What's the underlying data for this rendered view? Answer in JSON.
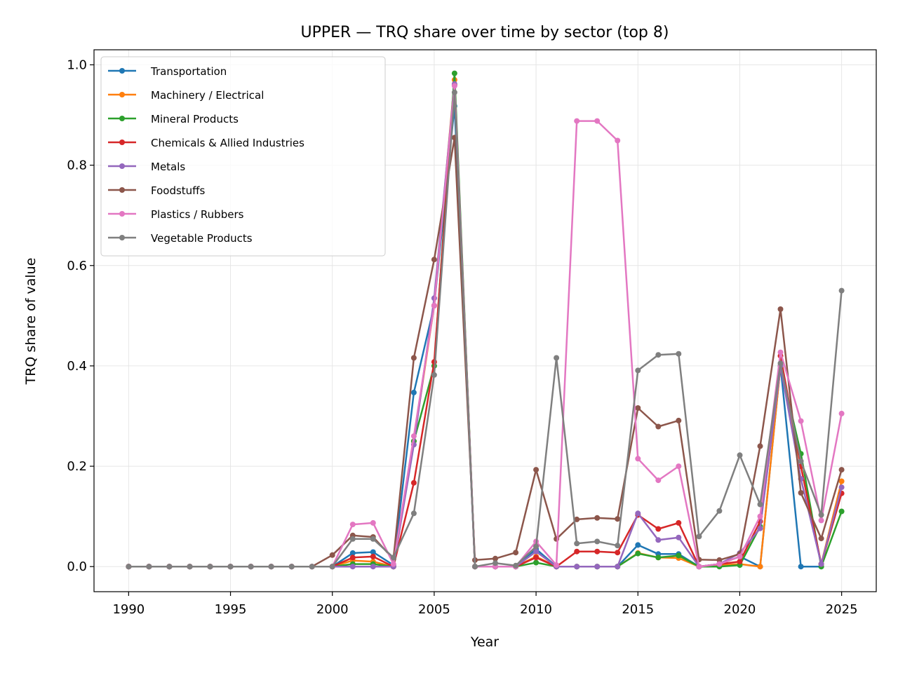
{
  "chart_data": {
    "type": "line",
    "title": "UPPER — TRQ share over time by sector (top 8)",
    "xlabel": "Year",
    "ylabel": "TRQ share of value",
    "xlim": [
      1988.3,
      2026.7
    ],
    "ylim": [
      -0.05,
      1.03
    ],
    "xticks": [
      1990,
      1995,
      2000,
      2005,
      2010,
      2015,
      2020,
      2025
    ],
    "yticks": [
      "0.0",
      "0.2",
      "0.4",
      "0.6",
      "0.8",
      "1.0"
    ],
    "grid": true,
    "legend_position": "top-left",
    "x": [
      1990,
      1991,
      1992,
      1993,
      1994,
      1995,
      1996,
      1997,
      1998,
      1999,
      2000,
      2001,
      2002,
      2003,
      2004,
      2005,
      2006,
      2007,
      2008,
      2009,
      2010,
      2011,
      2012,
      2013,
      2014,
      2015,
      2016,
      2017,
      2018,
      2019,
      2020,
      2021,
      2022,
      2023,
      2024,
      2025
    ],
    "series": [
      {
        "name": "Transportation",
        "color": "#1f77b4",
        "values": [
          0,
          0,
          0,
          0,
          0,
          0,
          0,
          0,
          0,
          0,
          0,
          0.027,
          0.029,
          0.003,
          0.347,
          0.52,
          0.918,
          0,
          0,
          0,
          0.035,
          0,
          0,
          0,
          0,
          0.043,
          0.025,
          0.025,
          0,
          0.005,
          0.02,
          0,
          0.4,
          0,
          0,
          null
        ]
      },
      {
        "name": "Machinery / Electrical",
        "color": "#ff7f0e",
        "values": [
          0,
          0,
          0,
          0,
          0,
          0,
          0,
          0,
          0,
          0,
          0,
          0.012,
          0.01,
          0,
          0.25,
          0.52,
          0.97,
          0,
          0,
          0,
          0.02,
          0,
          0,
          0,
          0,
          0.027,
          0.018,
          0.017,
          0,
          0.003,
          0.005,
          0,
          0.4,
          0.2,
          0.005,
          0.17
        ]
      },
      {
        "name": "Mineral Products",
        "color": "#2ca02c",
        "values": [
          0,
          0,
          0,
          0,
          0,
          0,
          0,
          0,
          0,
          0,
          0,
          0.005,
          0.005,
          0,
          0.25,
          0.4,
          0.983,
          0,
          0,
          0,
          0.008,
          0,
          0,
          0,
          0,
          0.026,
          0.018,
          0.022,
          0,
          0,
          0.003,
          0.08,
          0.4,
          0.225,
          0,
          0.11
        ]
      },
      {
        "name": "Chemicals & Allied Industries",
        "color": "#d62728",
        "values": [
          0,
          0,
          0,
          0,
          0,
          0,
          0,
          0,
          0,
          0,
          0,
          0.018,
          0.02,
          0,
          0.167,
          0.408,
          0.96,
          0,
          0,
          0,
          0.018,
          0,
          0.03,
          0.03,
          0.028,
          0.103,
          0.075,
          0.087,
          0,
          0.005,
          0.01,
          0.09,
          0.42,
          0.2,
          0.005,
          0.146
        ]
      },
      {
        "name": "Metals",
        "color": "#9467bd",
        "values": [
          0,
          0,
          0,
          0,
          0,
          0,
          0,
          0,
          0,
          0,
          0,
          0,
          0,
          0,
          0.243,
          0.535,
          0.962,
          0,
          0,
          0,
          0.03,
          0,
          0,
          0,
          0,
          0.106,
          0.053,
          0.058,
          0,
          0.005,
          0.027,
          0.076,
          0.4,
          0.175,
          0.005,
          0.158
        ]
      },
      {
        "name": "Foodstuffs",
        "color": "#8c564b",
        "values": [
          0,
          0,
          0,
          0,
          0,
          0,
          0,
          0,
          0,
          0,
          0.023,
          0.062,
          0.059,
          0.015,
          0.416,
          0.612,
          0.855,
          0.013,
          0.016,
          0.028,
          0.193,
          0.055,
          0.094,
          0.097,
          0.095,
          0.316,
          0.279,
          0.291,
          0.014,
          0.013,
          0.025,
          0.24,
          0.513,
          0.147,
          0.056,
          0.193
        ]
      },
      {
        "name": "Plastics / Rubbers",
        "color": "#e377c2",
        "values": [
          0,
          0,
          0,
          0,
          0,
          0,
          0,
          0,
          0,
          0,
          0,
          0.084,
          0.087,
          0.005,
          0.26,
          0.52,
          0.958,
          0,
          0,
          0,
          0.05,
          0.003,
          0.888,
          0.888,
          0.849,
          0.215,
          0.172,
          0.2,
          0,
          0.005,
          0.02,
          0.1,
          0.427,
          0.29,
          0.092,
          0.305
        ]
      },
      {
        "name": "Vegetable Products",
        "color": "#7f7f7f",
        "values": [
          0,
          0,
          0,
          0,
          0,
          0,
          0,
          0,
          0,
          0,
          0,
          0.055,
          0.055,
          0.018,
          0.106,
          0.382,
          0.945,
          0,
          0.007,
          0.002,
          0.04,
          0.416,
          0.046,
          0.05,
          0.042,
          0.391,
          0.422,
          0.424,
          0.06,
          0.111,
          0.222,
          0.124,
          0.405,
          0.21,
          0.103,
          0.55
        ]
      }
    ]
  }
}
